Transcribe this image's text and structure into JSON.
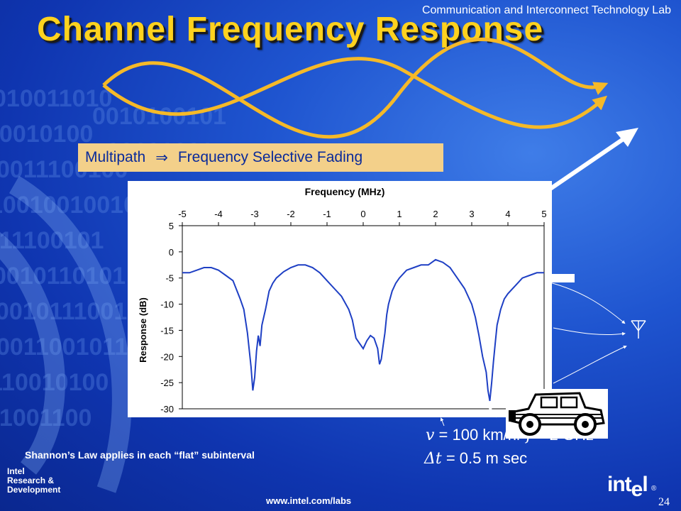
{
  "header": {
    "lab_title": "Communication and Interconnect Technology Lab",
    "title": "Channel Frequency Response"
  },
  "multipath": {
    "left": "Multipath",
    "arrow": "⇒",
    "right": "Frequency Selective Fading"
  },
  "chart_data": {
    "type": "line",
    "title": "",
    "xlabel": "Frequency (MHz)",
    "ylabel": "Response (dB)",
    "x_ticks": [
      "-5",
      "-4",
      "-3",
      "-2",
      "-1",
      "0",
      "1",
      "2",
      "3",
      "4",
      "5"
    ],
    "y_ticks": [
      "5",
      "0",
      "-5",
      "-10",
      "-15",
      "-20",
      "-25",
      "-30"
    ],
    "xlim": [
      -5,
      5
    ],
    "ylim": [
      -30,
      5
    ],
    "x_axis_position": "top",
    "grid": false,
    "line_color": "#1e3fc4",
    "series": [
      {
        "x": [
          -5.0,
          -4.8,
          -4.6,
          -4.4,
          -4.2,
          -4.0,
          -3.8,
          -3.6,
          -3.4,
          -3.3,
          -3.2,
          -3.1,
          -3.05,
          -3.0,
          -2.95,
          -2.9,
          -2.85,
          -2.8,
          -2.7,
          -2.6,
          -2.5,
          -2.4,
          -2.2,
          -2.0,
          -1.8,
          -1.6,
          -1.4,
          -1.2,
          -1.0,
          -0.8,
          -0.6,
          -0.4,
          -0.3,
          -0.2,
          -0.1,
          0.0,
          0.1,
          0.2,
          0.3,
          0.4,
          0.45,
          0.5,
          0.55,
          0.6,
          0.65,
          0.7,
          0.8,
          0.9,
          1.0,
          1.2,
          1.4,
          1.6,
          1.8,
          2.0,
          2.2,
          2.4,
          2.6,
          2.8,
          3.0,
          3.1,
          3.2,
          3.3,
          3.4,
          3.45,
          3.5,
          3.55,
          3.6,
          3.65,
          3.7,
          3.8,
          3.9,
          4.0,
          4.2,
          4.4,
          4.6,
          4.8,
          5.0
        ],
        "y": [
          -4.0,
          -4.0,
          -3.5,
          -3.0,
          -3.0,
          -3.5,
          -4.5,
          -5.5,
          -9.0,
          -11.0,
          -15.5,
          -22.0,
          -26.5,
          -24.0,
          -19.0,
          -16.0,
          -18.0,
          -14.0,
          -11.0,
          -7.5,
          -6.0,
          -5.0,
          -3.8,
          -3.0,
          -2.5,
          -2.5,
          -3.0,
          -4.0,
          -5.5,
          -7.0,
          -8.5,
          -11.0,
          -13.0,
          -16.5,
          -17.5,
          -18.5,
          -17.0,
          -16.0,
          -16.5,
          -18.5,
          -21.5,
          -20.5,
          -18.0,
          -15.5,
          -12.0,
          -10.0,
          -7.5,
          -6.0,
          -5.0,
          -3.5,
          -3.0,
          -2.5,
          -2.5,
          -1.5,
          -2.0,
          -3.0,
          -5.0,
          -7.0,
          -10.0,
          -12.5,
          -16.0,
          -20.0,
          -23.0,
          -26.5,
          -28.5,
          -25.0,
          -21.0,
          -17.5,
          -14.0,
          -11.0,
          -9.0,
          -8.0,
          -6.5,
          -5.0,
          -4.5,
          -4.0,
          -4.0
        ]
      }
    ]
  },
  "car": {
    "icon": "car-icon"
  },
  "equations": {
    "velocity_symbol": "v",
    "velocity_text": " = 100 km/hr ",
    "f_symbol": "f",
    "f_text": " = 2 GHz",
    "delta_symbol": "Δt",
    "delta_text": " = 0.5 m sec"
  },
  "footer": {
    "shannon": "Shannon’s Law applies in each “flat” subinterval",
    "intel_rd_line1": "Intel",
    "intel_rd_line2": "Research &",
    "intel_rd_line3": "Development",
    "url": "www.intel.com/labs",
    "page_number": "24",
    "intel_logo_a": "int",
    "intel_logo_b": "e",
    "intel_logo_c": "l",
    "registered": "®"
  },
  "colors": {
    "title": "#ffd21e",
    "wave": "#f5b928",
    "multipath_box": "#f3d08a",
    "multipath_text": "#0a2a9a",
    "chart_line": "#1e3fc4"
  }
}
